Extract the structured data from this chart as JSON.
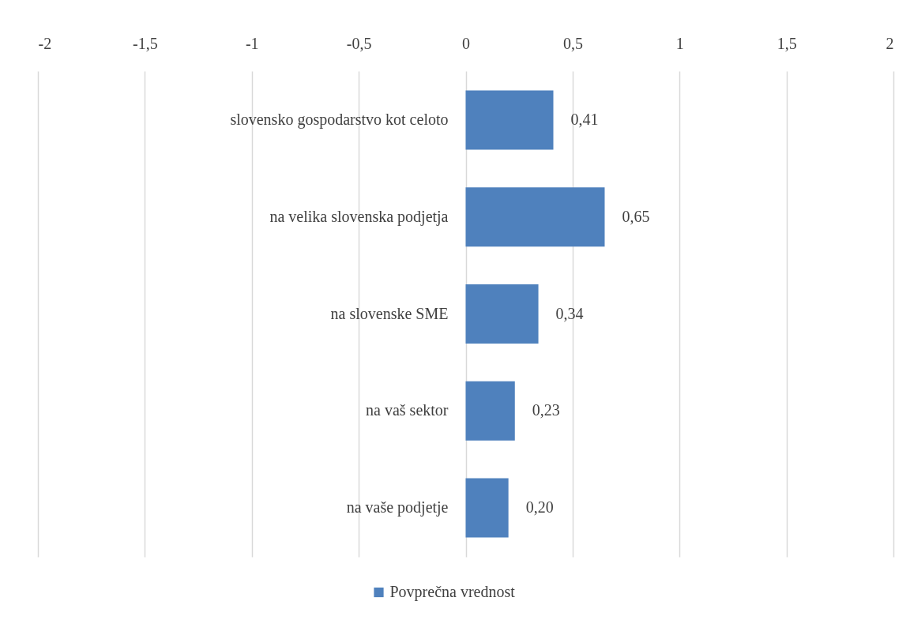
{
  "chart_data": {
    "type": "bar",
    "orientation": "horizontal",
    "categories": [
      "slovensko gospodarstvo kot celoto",
      "na velika slovenska podjetja",
      "na slovenske SME",
      "na vaš sektor",
      "na vaše podjetje"
    ],
    "series": [
      {
        "name": "Povprečna vrednost",
        "color": "#4f81bd",
        "values": [
          0.41,
          0.65,
          0.34,
          0.23,
          0.2
        ],
        "value_labels": [
          "0,41",
          "0,65",
          "0,34",
          "0,23",
          "0,20"
        ]
      }
    ],
    "xlim": [
      -2,
      2
    ],
    "xticks": [
      -2,
      {
        "value": -1.5,
        "label": "-1,5"
      },
      -1,
      {
        "value": -0.5,
        "label": "-0,5"
      },
      0,
      {
        "value": 0.5,
        "label": "0,5"
      },
      1,
      {
        "value": 1.5,
        "label": "1,5"
      },
      2
    ],
    "grid": "x",
    "legend": "bottom"
  }
}
